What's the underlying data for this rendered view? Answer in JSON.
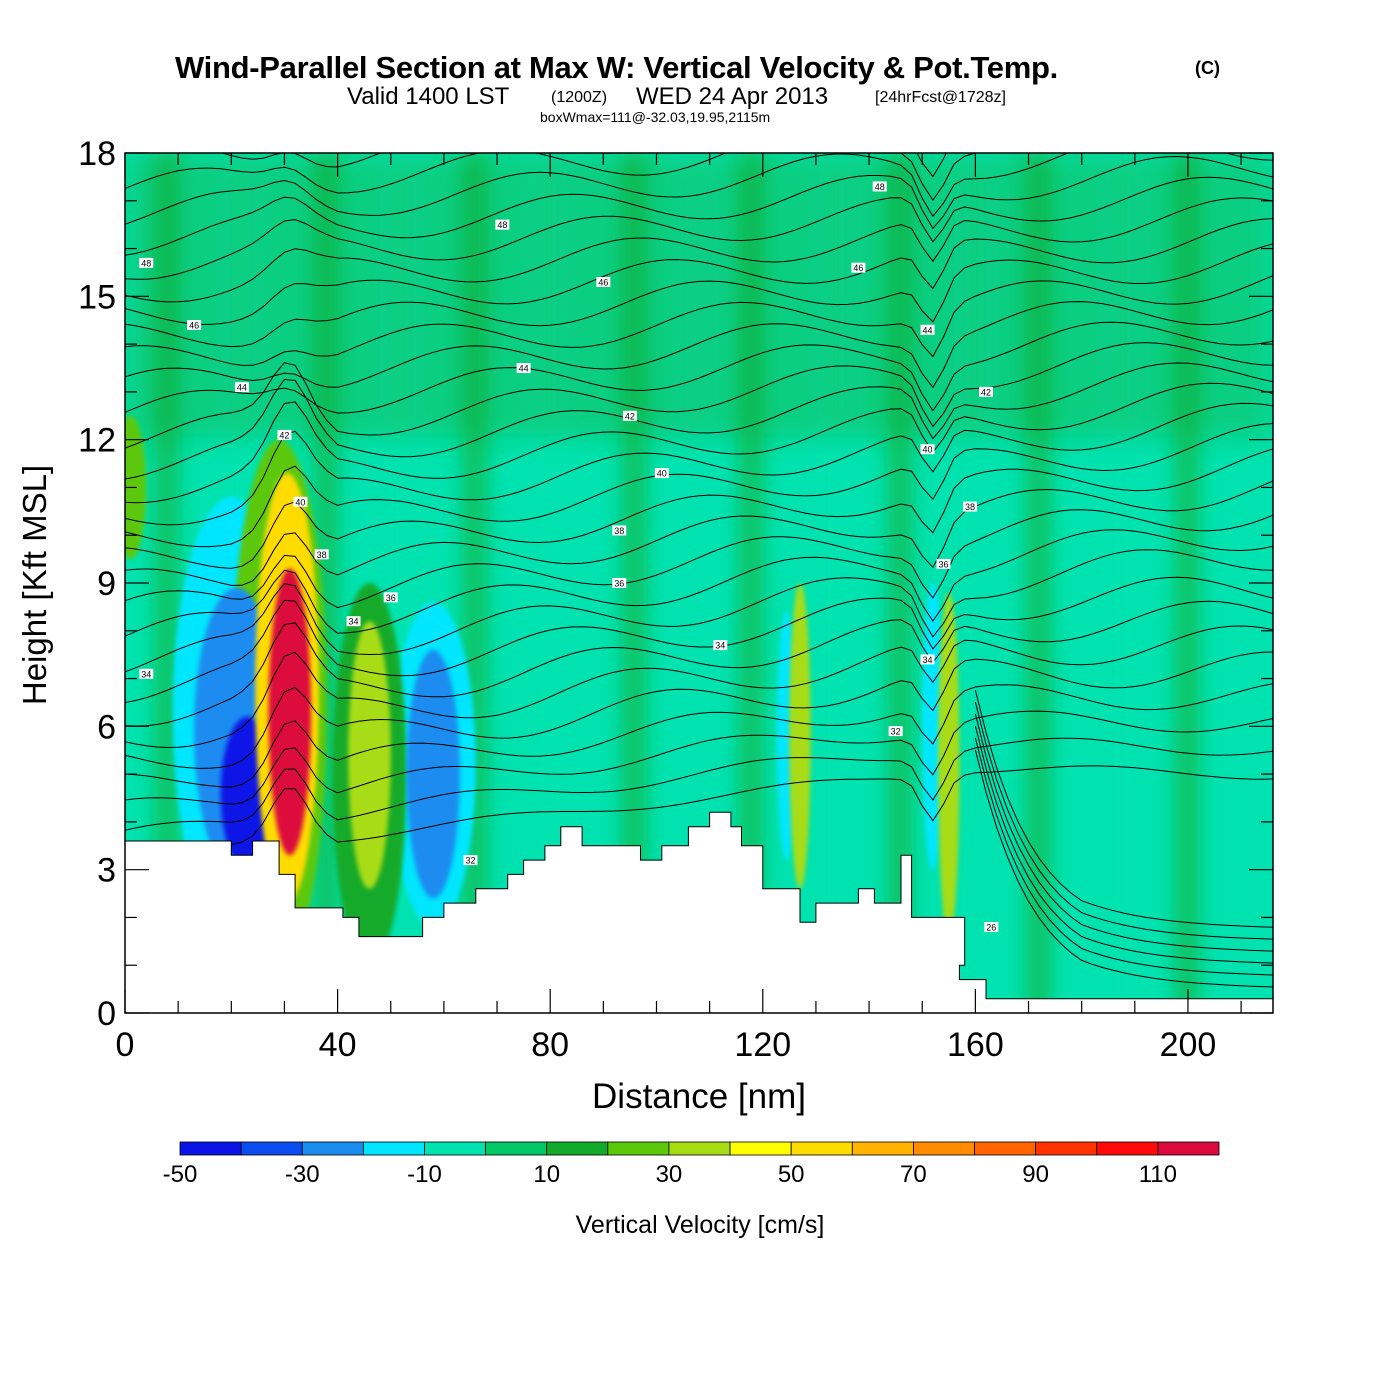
{
  "header": {
    "title": "Wind-Parallel Section at Max W: Vertical Velocity & Pot.Temp.",
    "copyright": "(C)",
    "valid_text": "Valid 1400 LST",
    "zulu": "(1200Z)",
    "date_text": "WED 24 Apr 2013",
    "forecast": "[24hrFcst@1728z]",
    "box_info": "boxWmax=111@-32.03,19.95,2115m"
  },
  "chart_data": {
    "type": "heatmap",
    "title": "Wind-Parallel Section at Max W: Vertical Velocity & Pot.Temp.",
    "xlabel": "Distance [nm]",
    "ylabel": "Height [Kft MSL]",
    "xlim": [
      0,
      216
    ],
    "ylim": [
      0,
      18
    ],
    "x_ticks": [
      "0",
      "40",
      "80",
      "120",
      "160",
      "200"
    ],
    "y_ticks": [
      "0",
      "3",
      "6",
      "9",
      "12",
      "15",
      "18"
    ],
    "colorbar": {
      "label": "Vertical Velocity [cm/s]",
      "levels": [
        -50,
        -40,
        -30,
        -20,
        -10,
        0,
        10,
        20,
        30,
        40,
        50,
        60,
        70,
        80,
        90,
        100,
        110,
        120
      ],
      "tick_labels": [
        "-50",
        "-30",
        "-10",
        "10",
        "30",
        "50",
        "70",
        "90",
        "110"
      ],
      "colors": [
        "#0a14e6",
        "#0a4cf0",
        "#1a8cf0",
        "#00e6ff",
        "#00e3b0",
        "#00c864",
        "#12aa2a",
        "#5cc80a",
        "#a8dc14",
        "#ffff00",
        "#ffdc00",
        "#ffb400",
        "#ff8c00",
        "#ff6400",
        "#ff3200",
        "#ff0a0a",
        "#dc0a3c"
      ]
    },
    "terrain_profile": {
      "x": [
        0,
        20,
        20,
        24,
        24,
        29,
        29,
        32,
        32,
        41,
        41,
        44,
        44,
        56,
        56,
        60,
        60,
        66,
        66,
        72,
        72,
        75,
        75,
        79,
        79,
        82,
        82,
        86,
        86,
        97,
        97,
        101,
        101,
        106,
        106,
        110,
        110,
        114,
        114,
        116,
        116,
        120,
        120,
        127,
        127,
        130,
        130,
        138,
        138,
        141,
        141,
        146,
        146,
        148,
        148,
        152,
        152,
        158,
        158,
        157,
        157,
        158,
        158,
        160,
        160,
        162,
        162,
        183,
        183,
        216
      ],
      "height_kft": [
        3.6,
        3.6,
        3.3,
        3.3,
        3.6,
        3.6,
        2.9,
        2.9,
        2.2,
        2.2,
        2.0,
        2.0,
        1.6,
        1.6,
        2.0,
        2.0,
        2.3,
        2.3,
        2.6,
        2.6,
        2.9,
        2.9,
        3.2,
        3.2,
        3.5,
        3.5,
        3.9,
        3.9,
        3.5,
        3.5,
        3.2,
        3.2,
        3.5,
        3.5,
        3.9,
        3.9,
        4.2,
        4.2,
        3.9,
        3.9,
        3.5,
        3.5,
        2.6,
        2.6,
        1.9,
        1.9,
        2.3,
        2.3,
        2.6,
        2.6,
        2.3,
        2.3,
        3.3,
        3.3,
        2.0,
        2.0,
        2.0,
        2.0,
        1.0,
        1.0,
        0.7,
        0.7,
        0.7,
        0.7,
        0.7,
        0.7,
        0.3,
        0.3,
        0.3,
        0.3
      ]
    },
    "vertical_velocity_cells": [
      {
        "x": 31,
        "z": 6.3,
        "wx": 4,
        "wz": 3.0,
        "w": 111
      },
      {
        "x": 30.5,
        "z": 6.8,
        "wx": 6,
        "wz": 4.5,
        "w": 55
      },
      {
        "x": 29,
        "z": 6.5,
        "wx": 9,
        "wz": 5.5,
        "w": 25
      },
      {
        "x": 23,
        "z": 4.6,
        "wx": 5,
        "wz": 1.6,
        "w": -50
      },
      {
        "x": 21,
        "z": 5.9,
        "wx": 8,
        "wz": 3.0,
        "w": -25
      },
      {
        "x": 20,
        "z": 6.3,
        "wx": 11,
        "wz": 4.5,
        "w": -12
      },
      {
        "x": 46,
        "z": 5.4,
        "wx": 4,
        "wz": 2.8,
        "w": 35
      },
      {
        "x": 46,
        "z": 5.0,
        "wx": 7,
        "wz": 4.0,
        "w": 15
      },
      {
        "x": 58,
        "z": 5.0,
        "wx": 5,
        "wz": 2.6,
        "w": -25
      },
      {
        "x": 58,
        "z": 5.2,
        "wx": 8,
        "wz": 3.4,
        "w": -12
      },
      {
        "x": 127,
        "z": 5.8,
        "wx": 2,
        "wz": 3.2,
        "w": 35
      },
      {
        "x": 124.5,
        "z": 5.8,
        "wx": 1.8,
        "wz": 2.6,
        "w": -20
      },
      {
        "x": 155,
        "z": 5.2,
        "wx": 2,
        "wz": 3.6,
        "w": 32
      },
      {
        "x": 152,
        "z": 6.0,
        "wx": 2,
        "wz": 3.0,
        "w": -20
      },
      {
        "x": 1,
        "z": 11.0,
        "wx": 3,
        "wz": 1.5,
        "w": 20
      }
    ],
    "theta_isentropes_K": [
      "26",
      "28",
      "30",
      "32",
      "34",
      "36",
      "38",
      "40",
      "42",
      "44",
      "46",
      "48"
    ],
    "theta_labels": [
      {
        "x": 4,
        "z": 15.7,
        "text": "48"
      },
      {
        "x": 71,
        "z": 16.5,
        "text": "48"
      },
      {
        "x": 142,
        "z": 17.3,
        "text": "48"
      },
      {
        "x": 13,
        "z": 14.4,
        "text": "46"
      },
      {
        "x": 90,
        "z": 15.3,
        "text": "46"
      },
      {
        "x": 138,
        "z": 15.6,
        "text": "46"
      },
      {
        "x": 22,
        "z": 13.1,
        "text": "44"
      },
      {
        "x": 75,
        "z": 13.5,
        "text": "44"
      },
      {
        "x": 151,
        "z": 14.3,
        "text": "44"
      },
      {
        "x": 30,
        "z": 12.1,
        "text": "42"
      },
      {
        "x": 95,
        "z": 12.5,
        "text": "42"
      },
      {
        "x": 162,
        "z": 13.0,
        "text": "42"
      },
      {
        "x": 33,
        "z": 10.7,
        "text": "40"
      },
      {
        "x": 101,
        "z": 11.3,
        "text": "40"
      },
      {
        "x": 151,
        "z": 11.8,
        "text": "40"
      },
      {
        "x": 37,
        "z": 9.6,
        "text": "38"
      },
      {
        "x": 93,
        "z": 10.1,
        "text": "38"
      },
      {
        "x": 159,
        "z": 10.6,
        "text": "38"
      },
      {
        "x": 50,
        "z": 8.7,
        "text": "36"
      },
      {
        "x": 93,
        "z": 9.0,
        "text": "36"
      },
      {
        "x": 154,
        "z": 9.4,
        "text": "36"
      },
      {
        "x": 4,
        "z": 7.1,
        "text": "34"
      },
      {
        "x": 43,
        "z": 8.2,
        "text": "34"
      },
      {
        "x": 112,
        "z": 7.7,
        "text": "34"
      },
      {
        "x": 151,
        "z": 7.4,
        "text": "34"
      },
      {
        "x": 65,
        "z": 3.2,
        "text": "32"
      },
      {
        "x": 145,
        "z": 5.9,
        "text": "32"
      },
      {
        "x": 163,
        "z": 1.8,
        "text": "26"
      }
    ]
  }
}
